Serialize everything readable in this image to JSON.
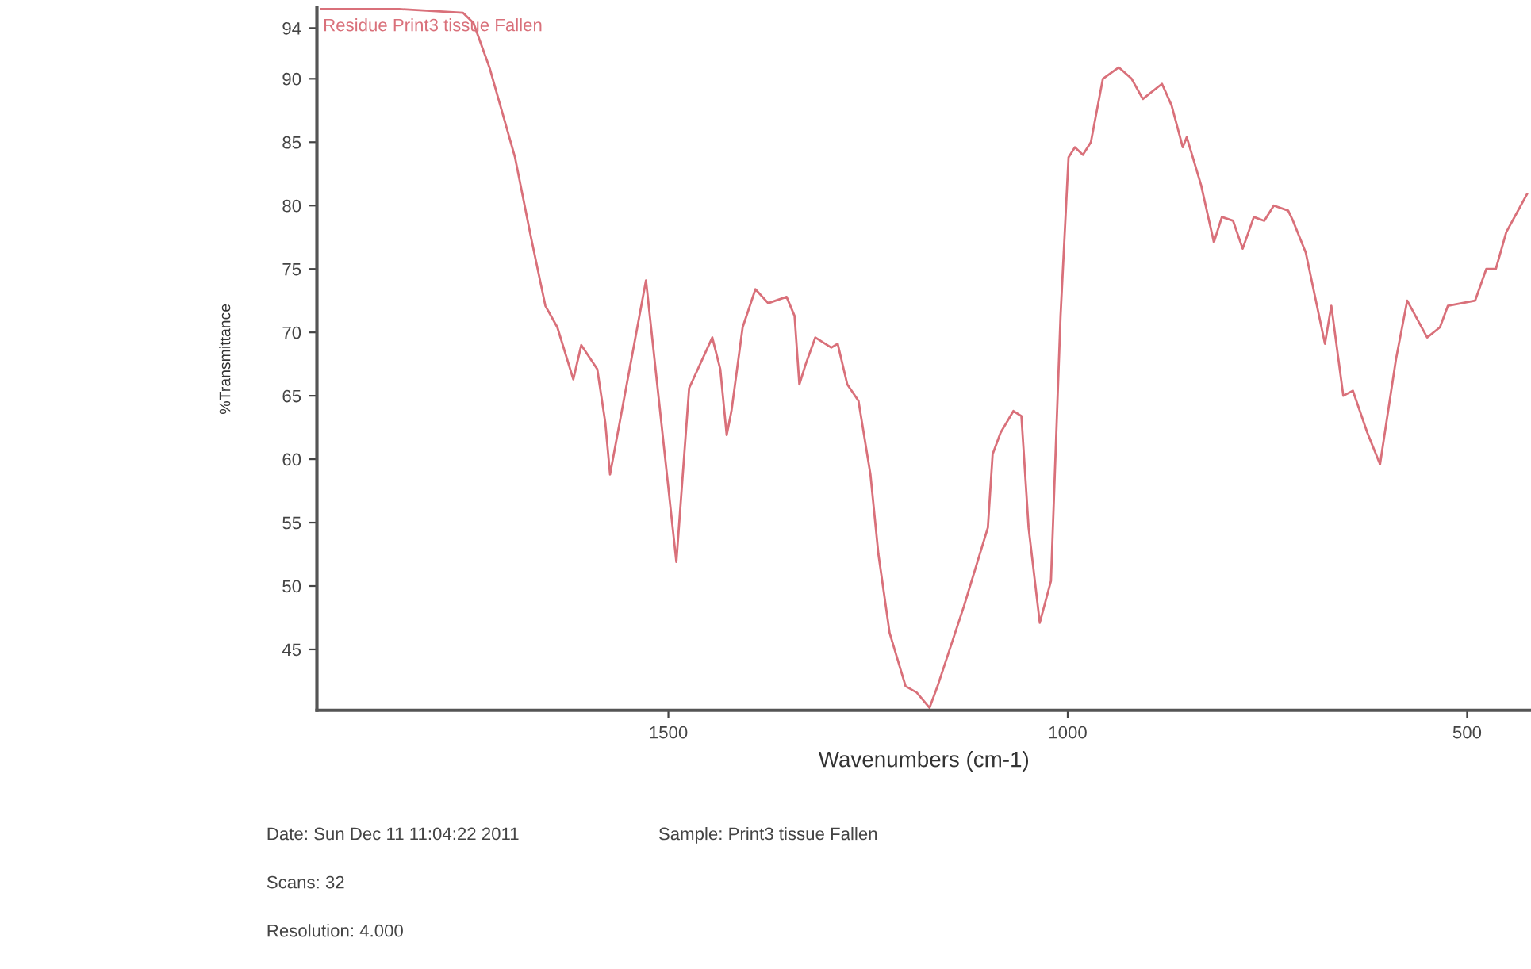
{
  "chart_data": {
    "type": "line",
    "xlabel": "Wavenumbers (cm-1)",
    "ylabel": "%Transmittance",
    "xlim": [
      1940,
      420
    ],
    "xticks": [
      1500,
      1000,
      500
    ],
    "ylim": [
      40.2,
      95.6
    ],
    "yticks": [
      45,
      50,
      55,
      60,
      65,
      70,
      75,
      80,
      85,
      90,
      94
    ],
    "grid": false,
    "legend": false,
    "marker": "none",
    "line_style": "solid",
    "annotations": [
      "Date: Sun Dec 11 11:04:22 2011",
      "Sample: Print3 tissue Fallen",
      "Scans: 32",
      "Resolution: 4.000"
    ],
    "series": [
      {
        "name": "Residue Print3 tissue Fallen",
        "color": "#d9707a",
        "x": [
          1935,
          1837,
          1757,
          1744,
          1724,
          1692,
          1672,
          1654,
          1639,
          1619,
          1609,
          1589,
          1579,
          1573,
          1528,
          1490,
          1474,
          1445,
          1435,
          1427,
          1421,
          1407,
          1391,
          1375,
          1352,
          1342,
          1336,
          1328,
          1316,
          1296,
          1288,
          1276,
          1262,
          1247,
          1237,
          1223,
          1203,
          1189,
          1173,
          1163,
          1130,
          1100,
          1094,
          1084,
          1068,
          1058,
          1049,
          1035,
          1021,
          1009,
          999,
          991,
          981,
          971,
          956,
          936,
          920,
          906,
          882,
          870,
          856,
          851,
          833,
          817,
          807,
          793,
          781,
          767,
          754,
          742,
          724,
          718,
          702,
          688,
          678,
          670,
          655,
          643,
          625,
          609,
          589,
          575,
          550,
          534,
          524,
          490,
          476,
          464,
          451,
          425
        ],
        "values": [
          95.5,
          95.5,
          95.2,
          94.4,
          90.9,
          83.8,
          77.5,
          72.1,
          70.4,
          66.3,
          69.0,
          67.1,
          62.9,
          58.8,
          74.1,
          51.9,
          65.6,
          69.6,
          67.1,
          61.9,
          63.8,
          70.4,
          73.4,
          72.3,
          72.8,
          71.3,
          65.9,
          67.5,
          69.6,
          68.8,
          69.1,
          65.9,
          64.6,
          58.8,
          52.5,
          46.3,
          42.1,
          41.6,
          40.4,
          42.1,
          48.4,
          54.6,
          60.4,
          62.1,
          63.8,
          63.4,
          54.6,
          47.1,
          50.4,
          71.3,
          83.8,
          84.6,
          84.0,
          85.0,
          90.0,
          90.9,
          90.0,
          88.4,
          89.6,
          87.9,
          84.6,
          85.4,
          81.6,
          77.1,
          79.1,
          78.8,
          76.6,
          79.1,
          78.8,
          80.0,
          79.6,
          78.8,
          76.3,
          72.1,
          69.1,
          72.1,
          65.0,
          65.4,
          62.1,
          59.6,
          67.9,
          72.5,
          69.6,
          70.4,
          72.1,
          72.5,
          75.0,
          75.0,
          77.9,
          80.9
        ]
      }
    ]
  }
}
